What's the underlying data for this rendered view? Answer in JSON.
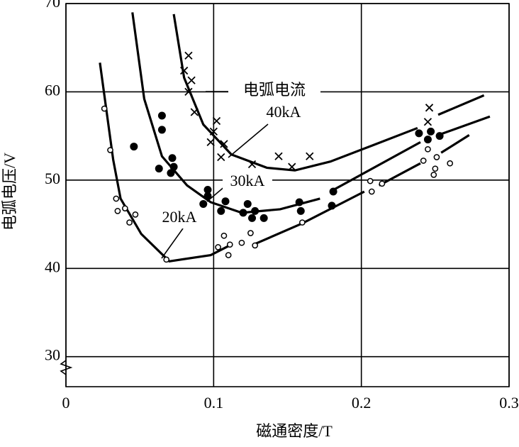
{
  "chart_data": {
    "type": "scatter",
    "xlabel": "磁通密度/T",
    "ylabel": "电弧电压/V",
    "legend_title": "电弧电流",
    "xlim": [
      0,
      0.3
    ],
    "ylim": [
      26.6,
      70
    ],
    "xticks": [
      0,
      0.1,
      0.2,
      0.3
    ],
    "yticks": [
      30,
      40,
      50,
      60,
      70
    ],
    "grid": true,
    "series": [
      {
        "name": "40kA",
        "color": "#000000",
        "marker": "x",
        "x": [
          0.083,
          0.08,
          0.085,
          0.083,
          0.087,
          0.102,
          0.098,
          0.1,
          0.107,
          0.105,
          0.126,
          0.144,
          0.153,
          0.165,
          0.246,
          0.245
        ],
        "values": [
          64.1,
          62.4,
          61.3,
          60.0,
          57.7,
          56.7,
          54.3,
          55.5,
          54.1,
          52.6,
          51.8,
          52.7,
          51.5,
          52.7,
          58.2,
          56.6
        ],
        "curve_x": [
          0.073,
          0.08,
          0.093,
          0.112,
          0.136,
          0.155,
          0.179,
          0.207,
          0.238,
          null,
          0.252,
          0.283
        ],
        "curve_values": [
          68.8,
          61.6,
          56.3,
          52.9,
          51.4,
          51.1,
          52.1,
          53.9,
          55.9,
          null,
          57.4,
          59.6
        ]
      },
      {
        "name": "30kA",
        "color": "#000000",
        "marker": "filled",
        "x": [
          0.065,
          0.065,
          0.046,
          0.072,
          0.073,
          0.063,
          0.071,
          0.096,
          0.096,
          0.093,
          0.108,
          0.105,
          0.123,
          0.12,
          0.128,
          0.126,
          0.134,
          0.158,
          0.159,
          0.181,
          0.18,
          0.239,
          0.245,
          0.247,
          0.253
        ],
        "values": [
          57.3,
          55.7,
          53.8,
          52.5,
          51.5,
          51.3,
          50.8,
          48.9,
          48.2,
          47.3,
          47.6,
          46.5,
          47.3,
          46.3,
          46.5,
          45.7,
          45.7,
          47.5,
          46.5,
          48.7,
          47.1,
          55.3,
          54.6,
          55.5,
          55.0
        ],
        "curve_x": [
          0.045,
          0.053,
          0.065,
          0.082,
          0.098,
          0.119,
          0.145,
          0.172,
          null,
          0.179,
          0.24,
          null,
          0.252,
          0.287
        ],
        "curve_values": [
          69.0,
          59.2,
          52.7,
          49.4,
          47.5,
          46.3,
          46.7,
          47.9,
          null,
          48.7,
          54.3,
          null,
          55.1,
          57.2
        ]
      },
      {
        "name": "20kA",
        "color": "#000000",
        "marker": "open",
        "x": [
          0.026,
          0.03,
          0.034,
          0.035,
          0.04,
          0.047,
          0.043,
          0.068,
          0.103,
          0.107,
          0.111,
          0.11,
          0.119,
          0.125,
          0.128,
          0.16,
          0.206,
          0.207,
          0.214,
          0.242,
          0.245,
          0.251,
          0.25,
          0.249,
          0.26
        ],
        "values": [
          58.1,
          53.4,
          47.9,
          46.5,
          46.8,
          46.1,
          45.2,
          41.0,
          42.4,
          43.7,
          42.7,
          41.5,
          42.9,
          44.0,
          42.6,
          45.2,
          49.9,
          48.7,
          49.6,
          52.2,
          53.5,
          52.6,
          51.3,
          50.6,
          51.9
        ],
        "curve_x": [
          0.023,
          0.027,
          0.032,
          0.037,
          0.051,
          0.07,
          0.098,
          0.112,
          null,
          0.127,
          0.16,
          0.202,
          null,
          0.212,
          0.24,
          null,
          0.254,
          0.273
        ],
        "curve_values": [
          63.3,
          58.4,
          52.3,
          47.9,
          43.9,
          40.8,
          41.5,
          42.7,
          null,
          42.7,
          45.1,
          48.7,
          null,
          49.4,
          51.9,
          null,
          53.1,
          55.1
        ]
      }
    ]
  }
}
